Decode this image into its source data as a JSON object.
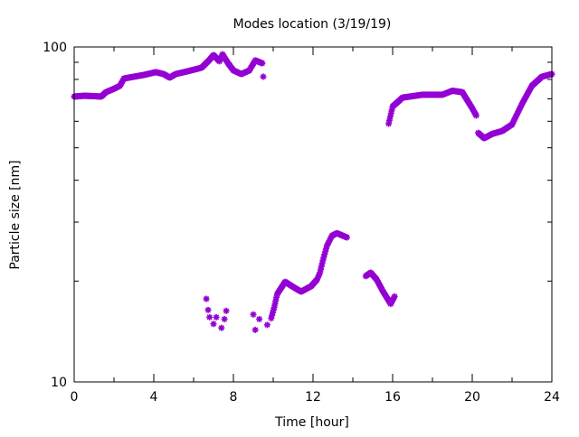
{
  "chart_data": {
    "type": "scatter",
    "title": "Modes location (3/19/19)",
    "xlabel": "Time [hour]",
    "ylabel": "Particle size [nm]",
    "xlim": [
      0,
      24
    ],
    "ylim": [
      10,
      100
    ],
    "yscale": "log",
    "xticks": [
      "0",
      "4",
      "8",
      "12",
      "16",
      "20",
      "24"
    ],
    "yticks": [
      "10",
      "100"
    ],
    "grid": false,
    "color": "#9400d3",
    "segments": [
      [
        [
          0,
          71.1
        ],
        [
          0.5,
          71.5
        ],
        [
          1.0,
          71.3
        ],
        [
          1.36,
          71.1
        ],
        [
          1.6,
          73.3
        ],
        [
          2.0,
          75.0
        ],
        [
          2.3,
          76.6
        ],
        [
          2.5,
          80.5
        ],
        [
          3.0,
          81.5
        ],
        [
          3.5,
          82.5
        ],
        [
          4.1,
          84.1
        ],
        [
          4.5,
          83.0
        ],
        [
          4.8,
          81.0
        ],
        [
          5.1,
          83.0
        ],
        [
          5.7,
          84.6
        ],
        [
          6.4,
          86.7
        ],
        [
          6.8,
          91.5
        ],
        [
          7.0,
          94.6
        ],
        [
          7.3,
          90.6
        ],
        [
          7.45,
          95.1
        ],
        [
          7.7,
          90.0
        ],
        [
          8.0,
          85.1
        ],
        [
          8.4,
          83.0
        ],
        [
          8.8,
          85.1
        ],
        [
          9.1,
          91.2
        ],
        [
          9.45,
          89.4
        ]
      ],
      [
        [
          9.5,
          81.5
        ]
      ],
      [
        [
          6.64,
          17.7
        ]
      ],
      [
        [
          6.73,
          16.4
        ]
      ],
      [
        [
          6.8,
          15.6
        ]
      ],
      [
        [
          7.0,
          14.9
        ]
      ],
      [
        [
          7.14,
          15.6
        ]
      ],
      [
        [
          7.4,
          14.5
        ]
      ],
      [
        [
          7.55,
          15.4
        ]
      ],
      [
        [
          7.64,
          16.3
        ]
      ],
      [
        [
          9.0,
          15.9
        ]
      ],
      [
        [
          9.1,
          14.3
        ]
      ],
      [
        [
          9.3,
          15.4
        ]
      ],
      [
        [
          9.7,
          14.8
        ]
      ],
      [
        [
          9.9,
          15.5
        ],
        [
          10.05,
          16.7
        ],
        [
          10.2,
          18.3
        ],
        [
          10.6,
          19.9
        ],
        [
          10.95,
          19.3
        ],
        [
          11.4,
          18.6
        ],
        [
          11.9,
          19.3
        ],
        [
          12.2,
          20.2
        ],
        [
          12.35,
          21.2
        ],
        [
          12.5,
          23.1
        ],
        [
          12.7,
          25.5
        ],
        [
          12.95,
          27.3
        ],
        [
          13.2,
          27.8
        ],
        [
          13.7,
          27.0
        ]
      ],
      [
        [
          14.65,
          20.7
        ],
        [
          14.9,
          21.2
        ],
        [
          15.2,
          20.2
        ],
        [
          15.5,
          18.7
        ],
        [
          15.9,
          17.1
        ],
        [
          16.1,
          18.0
        ]
      ],
      [
        [
          15.8,
          59.0
        ],
        [
          16.0,
          66.4
        ],
        [
          16.5,
          70.6
        ],
        [
          17.5,
          72.0
        ],
        [
          18.5,
          72.0
        ],
        [
          19.0,
          74.0
        ],
        [
          19.5,
          73.3
        ],
        [
          20.0,
          65.6
        ],
        [
          20.2,
          62.4
        ]
      ],
      [
        [
          20.3,
          55.4
        ],
        [
          20.6,
          53.4
        ],
        [
          21.0,
          55.0
        ],
        [
          21.5,
          56.1
        ],
        [
          22.0,
          58.7
        ],
        [
          22.5,
          67.6
        ],
        [
          23.0,
          76.6
        ],
        [
          23.5,
          81.5
        ],
        [
          24.0,
          83.0
        ]
      ]
    ]
  }
}
